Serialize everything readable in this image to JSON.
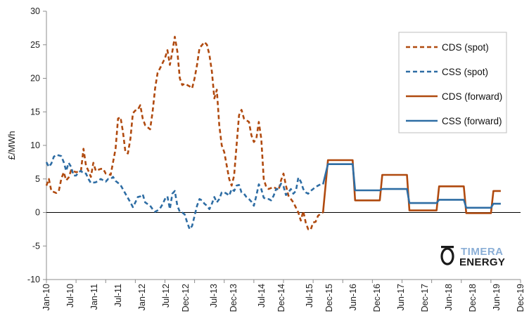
{
  "chart_data": {
    "type": "line",
    "title": "",
    "xlabel": "",
    "ylabel": "£/MWh",
    "ylim": [
      -10,
      30
    ],
    "yticks": [
      -10,
      -5,
      0,
      5,
      10,
      15,
      20,
      25,
      30
    ],
    "x_tick_labels": [
      "Jan-10",
      "Jul-10",
      "Jan-11",
      "Jul-11",
      "Jan-12",
      "Jul-12",
      "Dec-12",
      "Jul-13",
      "Dec-13",
      "Jul-14",
      "Dec-14",
      "Jul-15",
      "Dec-15",
      "Jun-16",
      "Dec-16",
      "Jun-17",
      "Dec-17",
      "Jun-18",
      "Dec-18",
      "Jun-19",
      "Dec-19"
    ],
    "x_unit": "months since Jan-10",
    "grid": "none",
    "legend_position": "top-right",
    "series": [
      {
        "name": "CDS (spot)",
        "color": "#b04a0f",
        "style": "dashed",
        "points": [
          [
            0,
            4
          ],
          [
            0.5,
            5
          ],
          [
            1,
            3.2
          ],
          [
            2,
            2.9
          ],
          [
            2.5,
            3.2
          ],
          [
            3,
            5
          ],
          [
            3.5,
            6
          ],
          [
            4,
            4.8
          ],
          [
            4.5,
            5.2
          ],
          [
            5,
            6.3
          ],
          [
            6,
            6
          ],
          [
            7,
            6.2
          ],
          [
            7.5,
            9.5
          ],
          [
            8,
            7
          ],
          [
            8.5,
            6.2
          ],
          [
            9,
            5.3
          ],
          [
            9.5,
            7.4
          ],
          [
            10,
            6.2
          ],
          [
            11,
            6.5
          ],
          [
            11.5,
            6.5
          ],
          [
            12,
            5.8
          ],
          [
            13,
            5.6
          ],
          [
            14,
            9.5
          ],
          [
            14.5,
            14
          ],
          [
            15,
            14.2
          ],
          [
            15.5,
            12
          ],
          [
            16,
            9
          ],
          [
            16.5,
            8.8
          ],
          [
            17,
            11
          ],
          [
            17.5,
            14.8
          ],
          [
            18,
            15.2
          ],
          [
            18.5,
            15.3
          ],
          [
            19,
            16
          ],
          [
            19.5,
            14
          ],
          [
            20,
            13
          ],
          [
            21,
            12.4
          ],
          [
            21.5,
            15
          ],
          [
            22,
            18.5
          ],
          [
            22.5,
            20.8
          ],
          [
            23,
            21.5
          ],
          [
            24,
            23
          ],
          [
            24.5,
            24.2
          ],
          [
            25,
            22
          ],
          [
            25.5,
            24
          ],
          [
            26,
            26.2
          ],
          [
            26.5,
            24
          ],
          [
            27,
            20
          ],
          [
            27.5,
            19
          ],
          [
            28,
            19.2
          ],
          [
            29,
            18.8
          ],
          [
            29.5,
            18.5
          ],
          [
            30,
            20
          ],
          [
            30.5,
            22
          ],
          [
            31,
            24.5
          ],
          [
            32,
            25.4
          ],
          [
            32.5,
            25
          ],
          [
            33,
            23.5
          ],
          [
            33.5,
            21
          ],
          [
            34,
            17
          ],
          [
            34.5,
            18.3
          ],
          [
            35,
            13
          ],
          [
            35.5,
            10
          ],
          [
            36,
            9
          ],
          [
            36.5,
            7
          ],
          [
            37,
            5
          ],
          [
            37.5,
            4
          ],
          [
            38,
            5.5
          ],
          [
            38.5,
            10
          ],
          [
            39,
            14.5
          ],
          [
            39.5,
            15.3
          ],
          [
            40,
            14
          ],
          [
            41,
            13.5
          ],
          [
            41.5,
            11.5
          ],
          [
            42,
            10.5
          ],
          [
            42.5,
            11
          ],
          [
            43,
            13.5
          ],
          [
            43.5,
            11
          ],
          [
            44,
            5
          ],
          [
            44.5,
            3.8
          ],
          [
            45,
            3.5
          ],
          [
            46,
            3.8
          ],
          [
            47,
            3.3
          ],
          [
            47.5,
            4.8
          ],
          [
            48,
            5.8
          ],
          [
            48.5,
            4
          ],
          [
            49,
            2.5
          ],
          [
            50,
            1.5
          ],
          [
            51,
            0
          ],
          [
            51.5,
            -1.2
          ],
          [
            52,
            0.2
          ],
          [
            52.5,
            -1.5
          ],
          [
            53,
            -2.5
          ],
          [
            53.5,
            -2.6
          ],
          [
            54,
            -1.5
          ],
          [
            54.5,
            -1.4
          ],
          [
            55,
            -0.5
          ],
          [
            55.5,
            -0.2
          ],
          [
            56,
            0
          ]
        ]
      },
      {
        "name": "CSS (spot)",
        "color": "#2e6da4",
        "style": "dashed",
        "points": [
          [
            0,
            7.5
          ],
          [
            0.5,
            6.8
          ],
          [
            1,
            7.3
          ],
          [
            1.5,
            8.3
          ],
          [
            2,
            8.6
          ],
          [
            2.5,
            8.5
          ],
          [
            3,
            8.4
          ],
          [
            3.5,
            7.5
          ],
          [
            4,
            6.2
          ],
          [
            4.5,
            7.4
          ],
          [
            5,
            6.8
          ],
          [
            5.5,
            5.5
          ],
          [
            6,
            5.5
          ],
          [
            6.5,
            6
          ],
          [
            7,
            6.2
          ],
          [
            7.5,
            5.8
          ],
          [
            8,
            5.8
          ],
          [
            8.5,
            5
          ],
          [
            9,
            4.4
          ],
          [
            10,
            4.5
          ],
          [
            11,
            5
          ],
          [
            12,
            4.6
          ],
          [
            12.5,
            5
          ],
          [
            13,
            5
          ],
          [
            13.5,
            5.3
          ],
          [
            14,
            4.7
          ],
          [
            15,
            4.1
          ],
          [
            16,
            2.8
          ],
          [
            17,
            1.5
          ],
          [
            17.5,
            0.8
          ],
          [
            18,
            1.5
          ],
          [
            18.5,
            2.3
          ],
          [
            19,
            2.4
          ],
          [
            19.5,
            2.7
          ],
          [
            20,
            1.5
          ],
          [
            21,
            1
          ],
          [
            21.5,
            0.5
          ],
          [
            22,
            0.1
          ],
          [
            22.5,
            0.3
          ],
          [
            23,
            0.6
          ],
          [
            23.5,
            1.2
          ],
          [
            24,
            2
          ],
          [
            24.5,
            2.4
          ],
          [
            25,
            0.5
          ],
          [
            25.5,
            2.8
          ],
          [
            26,
            3.2
          ],
          [
            26.5,
            1
          ],
          [
            27,
            0.1
          ],
          [
            27.5,
            0
          ],
          [
            28,
            -0.3
          ],
          [
            28.5,
            -1.5
          ],
          [
            29,
            -2.5
          ],
          [
            29.5,
            -2
          ],
          [
            30,
            -0.5
          ],
          [
            30.5,
            1
          ],
          [
            31,
            2
          ],
          [
            31.5,
            1.8
          ],
          [
            32,
            1.3
          ],
          [
            32.5,
            1
          ],
          [
            33,
            0.5
          ],
          [
            33.5,
            1.3
          ],
          [
            34,
            2.3
          ],
          [
            34.5,
            1.5
          ],
          [
            35,
            2
          ],
          [
            35.5,
            3
          ],
          [
            36,
            3
          ],
          [
            36.5,
            2.8
          ],
          [
            37,
            2.5
          ],
          [
            37.5,
            3.5
          ],
          [
            38,
            3.2
          ],
          [
            38.5,
            4
          ],
          [
            39,
            4.1
          ],
          [
            39.5,
            3
          ],
          [
            40,
            2.8
          ],
          [
            40.5,
            2.3
          ],
          [
            41,
            2
          ],
          [
            41.5,
            1.6
          ],
          [
            42,
            1
          ],
          [
            42.5,
            2.5
          ],
          [
            43,
            4.2
          ],
          [
            43.5,
            3.5
          ],
          [
            44,
            2.2
          ],
          [
            44.5,
            2
          ],
          [
            45,
            2
          ],
          [
            45.5,
            1.8
          ],
          [
            46,
            2.5
          ],
          [
            46.5,
            3.5
          ],
          [
            47,
            3.5
          ],
          [
            47.5,
            4.3
          ],
          [
            48,
            3.9
          ],
          [
            48.5,
            2.6
          ],
          [
            49,
            3
          ],
          [
            49.5,
            3.5
          ],
          [
            50,
            2.8
          ],
          [
            50.5,
            3.2
          ],
          [
            51,
            5.2
          ],
          [
            51.5,
            4.6
          ],
          [
            52,
            3.5
          ],
          [
            52.5,
            3
          ],
          [
            53,
            2.8
          ],
          [
            53.5,
            3.2
          ],
          [
            54,
            3.5
          ],
          [
            54.5,
            3.8
          ],
          [
            55,
            4
          ],
          [
            55.5,
            4.2
          ],
          [
            56,
            4.2
          ]
        ]
      },
      {
        "name": "CDS (forward)",
        "color": "#b04a0f",
        "style": "solid",
        "points": [
          [
            56,
            0
          ],
          [
            57,
            7.8
          ],
          [
            62,
            7.8
          ],
          [
            62.5,
            1.8
          ],
          [
            67.5,
            1.8
          ],
          [
            68,
            5.6
          ],
          [
            73,
            5.6
          ],
          [
            73.5,
            0.3
          ],
          [
            79,
            0.3
          ],
          [
            79.5,
            3.9
          ],
          [
            84.5,
            3.9
          ],
          [
            85,
            -0.1
          ],
          [
            90,
            -0.1
          ],
          [
            90.5,
            3.2
          ],
          [
            92,
            3.2
          ]
        ]
      },
      {
        "name": "CSS (forward)",
        "color": "#2e6da4",
        "style": "solid",
        "points": [
          [
            56,
            4.2
          ],
          [
            57,
            7.2
          ],
          [
            62,
            7.2
          ],
          [
            62.5,
            3.3
          ],
          [
            67.5,
            3.3
          ],
          [
            68,
            3.5
          ],
          [
            73,
            3.5
          ],
          [
            73.5,
            1.4
          ],
          [
            79,
            1.4
          ],
          [
            79.5,
            1.9
          ],
          [
            84.5,
            1.9
          ],
          [
            85,
            0.7
          ],
          [
            90,
            0.7
          ],
          [
            90.5,
            1.3
          ],
          [
            92,
            1.3
          ]
        ]
      }
    ]
  },
  "legend": {
    "items": [
      {
        "label": "CDS (spot)",
        "color": "#b04a0f",
        "style": "dashed"
      },
      {
        "label": "CSS (spot)",
        "color": "#2e6da4",
        "style": "dashed"
      },
      {
        "label": "CDS (forward)",
        "color": "#b04a0f",
        "style": "solid"
      },
      {
        "label": "CSS (forward)",
        "color": "#2e6da4",
        "style": "solid"
      }
    ]
  },
  "logo": {
    "line1": "TIMERA",
    "line2": "ENERGY"
  }
}
